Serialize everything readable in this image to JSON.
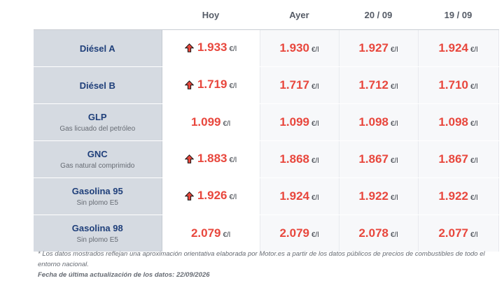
{
  "headers": {
    "hoy": "Hoy",
    "ayer": "Ayer",
    "d2": "20 / 09",
    "d1": "19 / 09"
  },
  "unit": "€/l",
  "colors": {
    "price": "#e8473d",
    "fuel_name": "#1f3f7a",
    "arrow_up": "#e8473d"
  },
  "rows": [
    {
      "name": "Diésel A",
      "sub": "",
      "hoy": "1.933",
      "hoy_trend": "up-arrow-icon",
      "ayer": "1.930",
      "d2": "1.927",
      "d1": "1.924"
    },
    {
      "name": "Diésel B",
      "sub": "",
      "hoy": "1.719",
      "hoy_trend": "up-arrow-icon",
      "ayer": "1.717",
      "d2": "1.712",
      "d1": "1.710"
    },
    {
      "name": "GLP",
      "sub": "Gas licuado del petróleo",
      "hoy": "1.099",
      "hoy_trend": "",
      "ayer": "1.099",
      "d2": "1.098",
      "d1": "1.098"
    },
    {
      "name": "GNC",
      "sub": "Gas natural comprimido",
      "hoy": "1.883",
      "hoy_trend": "up-arrow-icon",
      "ayer": "1.868",
      "d2": "1.867",
      "d1": "1.867"
    },
    {
      "name": "Gasolina 95",
      "sub": "Sin plomo E5",
      "hoy": "1.926",
      "hoy_trend": "up-arrow-icon",
      "ayer": "1.924",
      "d2": "1.922",
      "d1": "1.922"
    },
    {
      "name": "Gasolina 98",
      "sub": "Sin plomo E5",
      "hoy": "2.079",
      "hoy_trend": "",
      "ayer": "2.079",
      "d2": "2.078",
      "d1": "2.077"
    }
  ],
  "footnote": "* Los datos mostrados reflejan una aproximación orientativa elaborada por Motor.es a partir de los datos públicos de precios de combustibles de todo el entorno nacional.",
  "updated": "Fecha de última actualización de los datos: 22/09/2026"
}
